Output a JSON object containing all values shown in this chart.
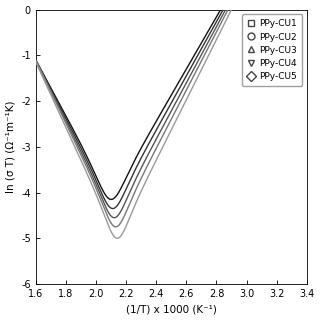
{
  "title": "",
  "xlabel": "(1/T) x 1000 (K⁻¹)",
  "ylabel": "ln (σ T) (Ω⁻¹m⁻¹K)",
  "xlim": [
    1.6,
    3.4
  ],
  "ylim": [
    -6,
    0
  ],
  "xticks": [
    1.6,
    1.8,
    2.0,
    2.2,
    2.4,
    2.6,
    2.8,
    3.0,
    3.2,
    3.4
  ],
  "yticks": [
    0,
    -1,
    -2,
    -3,
    -4,
    -5,
    -6
  ],
  "legend_labels": [
    "PPy-CU1",
    "PPy-CU2",
    "PPy-CU3",
    "PPy-CU4",
    "PPy-CU5"
  ],
  "legend_markers": [
    "s",
    "o",
    "^",
    "v",
    "D"
  ],
  "series": [
    {
      "label": "PPy-CU1",
      "marker": "s",
      "color": "#111111",
      "A": -4.15,
      "B": -0.2,
      "C": 12.0,
      "x0": 2.1
    },
    {
      "label": "PPy-CU2",
      "marker": "o",
      "color": "#333333",
      "A": -4.35,
      "B": -0.22,
      "C": 12.5,
      "x0": 2.11
    },
    {
      "label": "PPy-CU3",
      "marker": "^",
      "color": "#555555",
      "A": -4.55,
      "B": -0.24,
      "C": 13.0,
      "x0": 2.12
    },
    {
      "label": "PPy-CU4",
      "marker": "v",
      "color": "#777777",
      "A": -4.75,
      "B": -0.26,
      "C": 13.5,
      "x0": 2.13
    },
    {
      "label": "PPy-CU5",
      "marker": "D",
      "color": "#999999",
      "A": -5.0,
      "B": -0.28,
      "C": 14.0,
      "x0": 2.14
    }
  ],
  "background_color": "#ffffff",
  "figsize": [
    3.2,
    3.2
  ],
  "dpi": 100
}
